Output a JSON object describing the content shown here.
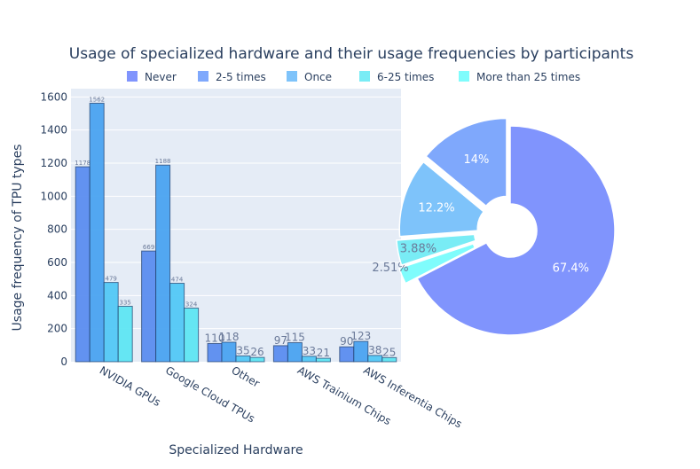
{
  "chart_data": [
    {
      "type": "bar",
      "title": "Usage of specialized hardware and their usage frequencies by participants",
      "xlabel": "Specialized Hardware",
      "ylabel": "Usage frequency of TPU types",
      "ylim": [
        0,
        1650
      ],
      "yticks": [
        0,
        200,
        400,
        600,
        800,
        1000,
        1200,
        1400,
        1600
      ],
      "grid": true,
      "categories": [
        "NVIDIA GPUs",
        "Google Cloud TPUs",
        "Other",
        "AWS Trainium Chips",
        "AWS Inferentia Chips"
      ],
      "series": [
        {
          "name": "Never",
          "color": "#5b8def",
          "values": [
            1178,
            669,
            110,
            97,
            90
          ],
          "labels": [
            "1178",
            "669",
            "110",
            "97",
            "90"
          ]
        },
        {
          "name": "2-5 times",
          "color": "#4aa3f0",
          "values": [
            1562,
            1188,
            118,
            115,
            123
          ],
          "labels": [
            "1562",
            "1188",
            "118",
            "115",
            "123"
          ]
        },
        {
          "name": "Once",
          "color": "#52c8f5",
          "values": [
            479,
            474,
            35,
            33,
            38
          ],
          "labels": [
            "479",
            "474",
            "35",
            "33",
            "38"
          ]
        },
        {
          "name": "6-25 times",
          "color": "#5ee6f2",
          "values": [
            335,
            324,
            26,
            21,
            25
          ],
          "labels": [
            "335",
            "324",
            "26",
            "21",
            "25"
          ]
        }
      ]
    },
    {
      "type": "pie",
      "hole": true,
      "slices": [
        {
          "label": "67.4%",
          "value": 67.4,
          "color": "#8094fd"
        },
        {
          "label": "2.51%",
          "value": 2.51,
          "color": "#7ffcfc"
        },
        {
          "label": "3.88%",
          "value": 3.88,
          "color": "#79ecf5"
        },
        {
          "label": "12.2%",
          "value": 12.2,
          "color": "#7ec3fa"
        },
        {
          "label": "14%",
          "value": 14.0,
          "color": "#7fa8fc"
        }
      ]
    }
  ],
  "legend": {
    "placement": "top",
    "items": [
      {
        "label": "Never",
        "color": "#8094fd"
      },
      {
        "label": "2-5 times",
        "color": "#7fa8fc"
      },
      {
        "label": "Once",
        "color": "#7ec3fa"
      },
      {
        "label": "6-25 times",
        "color": "#79ecf5"
      },
      {
        "label": "More than 25 times",
        "color": "#7ffcfc"
      }
    ]
  }
}
